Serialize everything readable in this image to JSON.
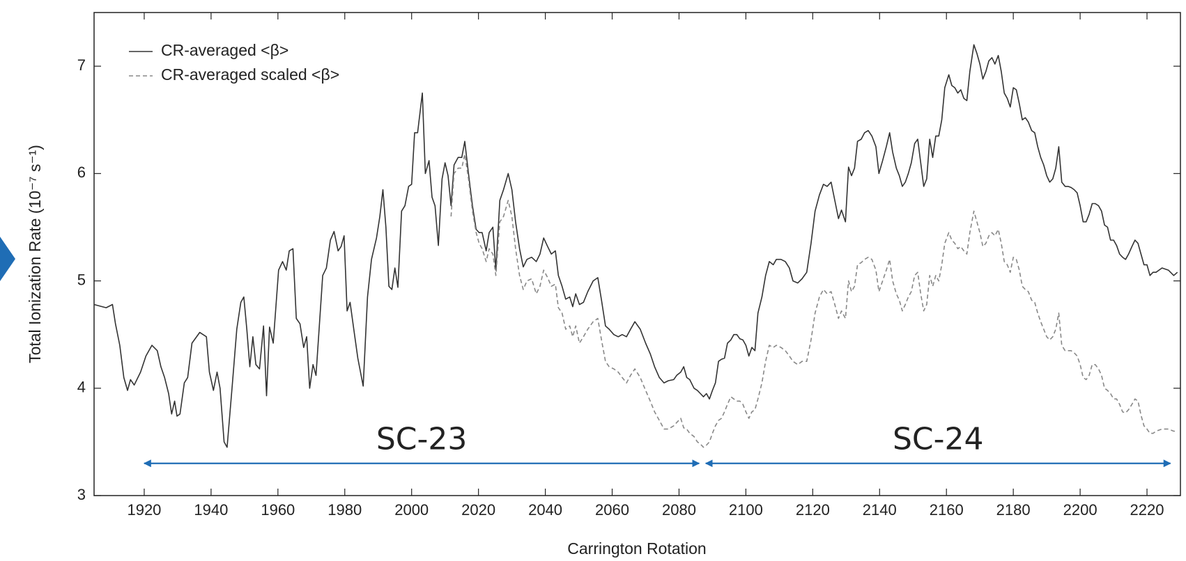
{
  "chart_data": {
    "type": "line",
    "xlabel": "Carrington Rotation",
    "ylabel": "Total Ionization Rate (10⁻⁷ s⁻¹)",
    "xlim": [
      1905,
      2230
    ],
    "ylim": [
      3,
      7.5
    ],
    "xticks": [
      1920,
      1940,
      1960,
      1980,
      2000,
      2020,
      2040,
      2060,
      2080,
      2100,
      2120,
      2140,
      2160,
      2180,
      2200,
      2220
    ],
    "yticks": [
      3,
      4,
      5,
      6,
      7
    ],
    "grid": false,
    "legend": "upper left",
    "x": [
      1905.0,
      1908.6,
      1910.5,
      1911.4,
      1912.7,
      1913.9,
      1915.0,
      1915.9,
      1917.0,
      1918.9,
      1920.5,
      1922.3,
      1923.9,
      1925.0,
      1926.1,
      1927.3,
      1928.2,
      1929.1,
      1929.8,
      1930.7,
      1932.0,
      1933.0,
      1934.3,
      1936.6,
      1938.6,
      1939.5,
      1940.7,
      1941.8,
      1942.7,
      1943.9,
      1944.8,
      1946.4,
      1947.7,
      1948.9,
      1949.8,
      1950.7,
      1951.6,
      1952.5,
      1953.4,
      1954.5,
      1955.7,
      1956.6,
      1957.5,
      1958.6,
      1960.2,
      1961.4,
      1962.5,
      1963.4,
      1964.5,
      1965.5,
      1966.6,
      1967.7,
      1968.6,
      1969.5,
      1970.5,
      1971.4,
      1973.4,
      1974.5,
      1975.7,
      1976.8,
      1978.0,
      1978.9,
      1979.8,
      1980.7,
      1981.6,
      1982.7,
      1983.9,
      1985.5,
      1986.8,
      1988.0,
      1989.5,
      1990.5,
      1991.4,
      1992.3,
      1993.2,
      1994.1,
      1995.0,
      1995.9,
      1997.0,
      1998.0,
      1999.1,
      2000.0,
      2000.9,
      2001.8,
      2003.2,
      2004.1,
      2005.2,
      2006.1,
      2007.0,
      2008.0,
      2009.1,
      2010.0,
      2010.9,
      2011.8,
      2012.7,
      2013.9,
      2015.0,
      2015.9,
      2017.0,
      2018.2,
      2019.3,
      2020.2,
      2021.1,
      2022.3,
      2023.2,
      2024.3,
      2025.2,
      2026.4,
      2027.5,
      2028.9,
      2030.0,
      2031.1,
      2032.3,
      2033.4,
      2034.5,
      2035.9,
      2037.3,
      2038.4,
      2039.5,
      2040.7,
      2041.8,
      2043.0,
      2043.9,
      2045.0,
      2046.1,
      2047.3,
      2048.2,
      2049.1,
      2050.2,
      2051.4,
      2052.7,
      2054.3,
      2055.7,
      2056.8,
      2058.0,
      2059.1,
      2060.5,
      2061.8,
      2063.0,
      2064.3,
      2065.5,
      2066.8,
      2068.4,
      2070.0,
      2071.4,
      2072.7,
      2074.1,
      2075.5,
      2076.8,
      2078.4,
      2079.3,
      2080.5,
      2081.4,
      2082.3,
      2083.2,
      2084.5,
      2085.5,
      2086.4,
      2087.3,
      2088.2,
      2089.1,
      2090.0,
      2090.9,
      2091.8,
      2092.7,
      2093.6,
      2094.5,
      2095.5,
      2096.4,
      2097.3,
      2098.2,
      2099.1,
      2100.0,
      2100.9,
      2101.8,
      2102.7,
      2103.6,
      2104.8,
      2105.9,
      2107.0,
      2108.2,
      2109.1,
      2110.5,
      2111.8,
      2113.0,
      2114.1,
      2115.5,
      2116.8,
      2118.2,
      2119.5,
      2120.7,
      2122.0,
      2123.2,
      2124.3,
      2125.5,
      2126.6,
      2127.7,
      2128.6,
      2129.8,
      2130.7,
      2131.6,
      2132.5,
      2133.4,
      2134.5,
      2135.5,
      2136.6,
      2137.7,
      2138.9,
      2139.8,
      2140.9,
      2142.0,
      2143.0,
      2143.9,
      2145.0,
      2145.9,
      2146.8,
      2147.7,
      2148.6,
      2149.5,
      2150.5,
      2151.4,
      2152.3,
      2153.2,
      2154.1,
      2155.0,
      2155.9,
      2156.8,
      2157.7,
      2158.6,
      2159.5,
      2160.7,
      2161.6,
      2162.5,
      2163.4,
      2164.3,
      2165.2,
      2166.1,
      2167.0,
      2168.2,
      2169.1,
      2170.0,
      2170.9,
      2171.8,
      2172.7,
      2173.6,
      2174.5,
      2175.5,
      2176.4,
      2177.3,
      2178.2,
      2179.1,
      2180.0,
      2180.9,
      2181.8,
      2182.7,
      2183.6,
      2184.5,
      2185.5,
      2186.4,
      2187.3,
      2188.2,
      2189.1,
      2190.0,
      2190.9,
      2191.8,
      2192.7,
      2193.6,
      2194.5,
      2195.5,
      2196.4,
      2197.3,
      2198.2,
      2199.1,
      2200.0,
      2200.9,
      2201.8,
      2202.7,
      2203.6,
      2204.5,
      2205.5,
      2206.4,
      2207.3,
      2208.2,
      2209.1,
      2210.0,
      2210.9,
      2211.8,
      2212.7,
      2213.6,
      2214.5,
      2215.5,
      2216.4,
      2217.3,
      2218.2,
      2219.1,
      2220.0,
      2220.9,
      2221.8,
      2222.7,
      2224.5,
      2226.4,
      2228.0,
      2229.1
    ],
    "series": [
      {
        "name": "CR-averaged <β>",
        "color": "#333333",
        "style": "solid",
        "values": [
          4.78,
          4.75,
          4.78,
          4.6,
          4.4,
          4.1,
          3.98,
          4.08,
          4.03,
          4.15,
          4.3,
          4.4,
          4.35,
          4.2,
          4.1,
          3.95,
          3.76,
          3.88,
          3.74,
          3.76,
          4.05,
          4.1,
          4.42,
          4.52,
          4.48,
          4.15,
          3.98,
          4.15,
          4.0,
          3.5,
          3.45,
          4.05,
          4.55,
          4.8,
          4.85,
          4.55,
          4.2,
          4.48,
          4.22,
          4.18,
          4.58,
          3.93,
          4.57,
          4.42,
          5.1,
          5.18,
          5.1,
          5.28,
          5.3,
          4.65,
          4.6,
          4.38,
          4.48,
          4.0,
          4.22,
          4.12,
          5.05,
          5.12,
          5.38,
          5.46,
          5.28,
          5.32,
          5.42,
          4.72,
          4.8,
          4.55,
          4.28,
          4.02,
          4.85,
          5.2,
          5.4,
          5.6,
          5.85,
          5.5,
          4.95,
          4.92,
          5.12,
          4.94,
          5.65,
          5.7,
          5.88,
          5.9,
          6.38,
          6.38,
          6.75,
          6.0,
          6.12,
          5.78,
          5.7,
          5.33,
          5.95,
          6.1,
          5.98,
          5.7,
          6.08,
          6.15,
          6.15,
          6.3,
          6.0,
          5.7,
          5.48,
          5.45,
          5.45,
          5.28,
          5.45,
          5.5,
          5.1,
          5.75,
          5.85,
          6.0,
          5.85,
          5.55,
          5.3,
          5.13,
          5.2,
          5.22,
          5.18,
          5.25,
          5.4,
          5.32,
          5.25,
          5.28,
          5.05,
          4.95,
          4.83,
          4.85,
          4.76,
          4.88,
          4.78,
          4.8,
          4.9,
          5.0,
          5.03,
          4.82,
          4.58,
          4.55,
          4.5,
          4.48,
          4.5,
          4.48,
          4.55,
          4.62,
          4.55,
          4.42,
          4.32,
          4.2,
          4.1,
          4.05,
          4.07,
          4.08,
          4.12,
          4.15,
          4.2,
          4.1,
          4.08,
          4.0,
          3.98,
          3.95,
          3.92,
          3.95,
          3.9,
          3.98,
          4.05,
          4.25,
          4.27,
          4.28,
          4.42,
          4.45,
          4.5,
          4.5,
          4.46,
          4.45,
          4.4,
          4.3,
          4.38,
          4.35,
          4.7,
          4.85,
          5.05,
          5.18,
          5.15,
          5.2,
          5.2,
          5.18,
          5.12,
          5.0,
          4.98,
          5.02,
          5.08,
          5.35,
          5.65,
          5.8,
          5.9,
          5.88,
          5.92,
          5.75,
          5.58,
          5.66,
          5.55,
          6.06,
          5.98,
          6.05,
          6.3,
          6.32,
          6.38,
          6.4,
          6.35,
          6.25,
          6.0,
          6.12,
          6.25,
          6.38,
          6.2,
          6.05,
          5.98,
          5.88,
          5.92,
          6.0,
          6.1,
          6.28,
          6.32,
          6.1,
          5.88,
          5.95,
          6.32,
          6.15,
          6.35,
          6.35,
          6.5,
          6.8,
          6.92,
          6.82,
          6.8,
          6.75,
          6.78,
          6.7,
          6.68,
          6.95,
          7.2,
          7.12,
          7.02,
          6.88,
          6.95,
          7.05,
          7.08,
          7.02,
          7.1,
          6.95,
          6.75,
          6.7,
          6.62,
          6.8,
          6.78,
          6.65,
          6.5,
          6.52,
          6.48,
          6.4,
          6.38,
          6.25,
          6.15,
          6.08,
          5.98,
          5.92,
          5.95,
          6.05,
          6.25,
          5.92,
          5.88,
          5.88,
          5.87,
          5.85,
          5.82,
          5.7,
          5.55,
          5.55,
          5.62,
          5.72,
          5.72,
          5.7,
          5.65,
          5.52,
          5.5,
          5.38,
          5.38,
          5.33,
          5.25,
          5.22,
          5.2,
          5.25,
          5.32,
          5.38,
          5.35,
          5.25,
          5.15,
          5.15,
          5.05,
          5.08,
          5.08,
          5.12,
          5.1,
          5.05,
          5.08
        ]
      },
      {
        "name": "CR-averaged scaled <β>",
        "color": "#888888",
        "style": "dashed",
        "values": [
          null,
          null,
          null,
          null,
          null,
          null,
          null,
          null,
          null,
          null,
          null,
          null,
          null,
          null,
          null,
          null,
          null,
          null,
          null,
          null,
          null,
          null,
          null,
          null,
          null,
          null,
          null,
          null,
          null,
          null,
          null,
          null,
          null,
          null,
          null,
          null,
          null,
          null,
          null,
          null,
          null,
          null,
          null,
          null,
          null,
          null,
          null,
          null,
          null,
          null,
          null,
          null,
          null,
          null,
          null,
          null,
          null,
          null,
          null,
          null,
          null,
          null,
          null,
          null,
          null,
          null,
          null,
          null,
          null,
          null,
          null,
          null,
          null,
          null,
          null,
          null,
          null,
          null,
          null,
          null,
          null,
          null,
          null,
          null,
          null,
          null,
          null,
          null,
          null,
          null,
          null,
          null,
          null,
          5.6,
          6.0,
          6.05,
          6.05,
          6.18,
          5.95,
          5.65,
          5.45,
          5.35,
          5.3,
          5.18,
          5.3,
          5.25,
          5.05,
          5.55,
          5.6,
          5.75,
          5.6,
          5.3,
          5.05,
          4.92,
          5.0,
          5.02,
          4.88,
          4.95,
          5.1,
          5.03,
          4.95,
          4.97,
          4.75,
          4.7,
          4.55,
          4.58,
          4.48,
          4.58,
          4.42,
          4.48,
          4.55,
          4.62,
          4.65,
          4.45,
          4.25,
          4.2,
          4.18,
          4.15,
          4.1,
          4.05,
          4.12,
          4.18,
          4.1,
          3.98,
          3.88,
          3.78,
          3.7,
          3.62,
          3.62,
          3.65,
          3.68,
          3.72,
          3.63,
          3.62,
          3.58,
          3.55,
          3.5,
          3.48,
          3.45,
          3.47,
          3.5,
          3.58,
          3.65,
          3.7,
          3.72,
          3.78,
          3.85,
          3.92,
          3.9,
          3.88,
          3.88,
          3.85,
          3.78,
          3.72,
          3.78,
          3.8,
          3.9,
          4.05,
          4.25,
          4.4,
          4.38,
          4.4,
          4.38,
          4.35,
          4.3,
          4.25,
          4.22,
          4.25,
          4.25,
          4.45,
          4.7,
          4.85,
          4.92,
          4.88,
          4.9,
          4.78,
          4.65,
          4.72,
          4.65,
          5.0,
          4.9,
          4.95,
          5.15,
          5.17,
          5.2,
          5.22,
          5.2,
          5.1,
          4.9,
          5.0,
          5.1,
          5.2,
          5.0,
          4.88,
          4.82,
          4.72,
          4.78,
          4.85,
          4.9,
          5.05,
          5.08,
          4.88,
          4.72,
          4.78,
          5.05,
          4.95,
          5.05,
          5.0,
          5.15,
          5.35,
          5.45,
          5.38,
          5.35,
          5.3,
          5.32,
          5.28,
          5.25,
          5.45,
          5.65,
          5.55,
          5.45,
          5.32,
          5.35,
          5.42,
          5.45,
          5.42,
          5.48,
          5.35,
          5.18,
          5.15,
          5.08,
          5.22,
          5.2,
          5.1,
          4.95,
          4.92,
          4.9,
          4.82,
          4.8,
          4.7,
          4.62,
          4.55,
          4.48,
          4.45,
          4.48,
          4.55,
          4.7,
          4.4,
          4.35,
          4.35,
          4.35,
          4.33,
          4.3,
          4.22,
          4.1,
          4.08,
          4.12,
          4.22,
          4.22,
          4.18,
          4.12,
          4.0,
          3.98,
          3.95,
          3.9,
          3.9,
          3.85,
          3.78,
          3.77,
          3.8,
          3.85,
          3.9,
          3.88,
          3.75,
          3.65,
          3.62,
          3.58,
          3.58,
          3.6,
          3.62,
          3.62,
          3.6,
          3.6
        ]
      }
    ],
    "annotations": [
      {
        "text": "SC-23",
        "x_start": 1920,
        "x_end": 2086,
        "y": 3.3,
        "color": "#1f6db5"
      },
      {
        "text": "SC-24",
        "x_start": 2088,
        "x_end": 2227,
        "y": 3.3,
        "color": "#1f6db5"
      }
    ]
  }
}
